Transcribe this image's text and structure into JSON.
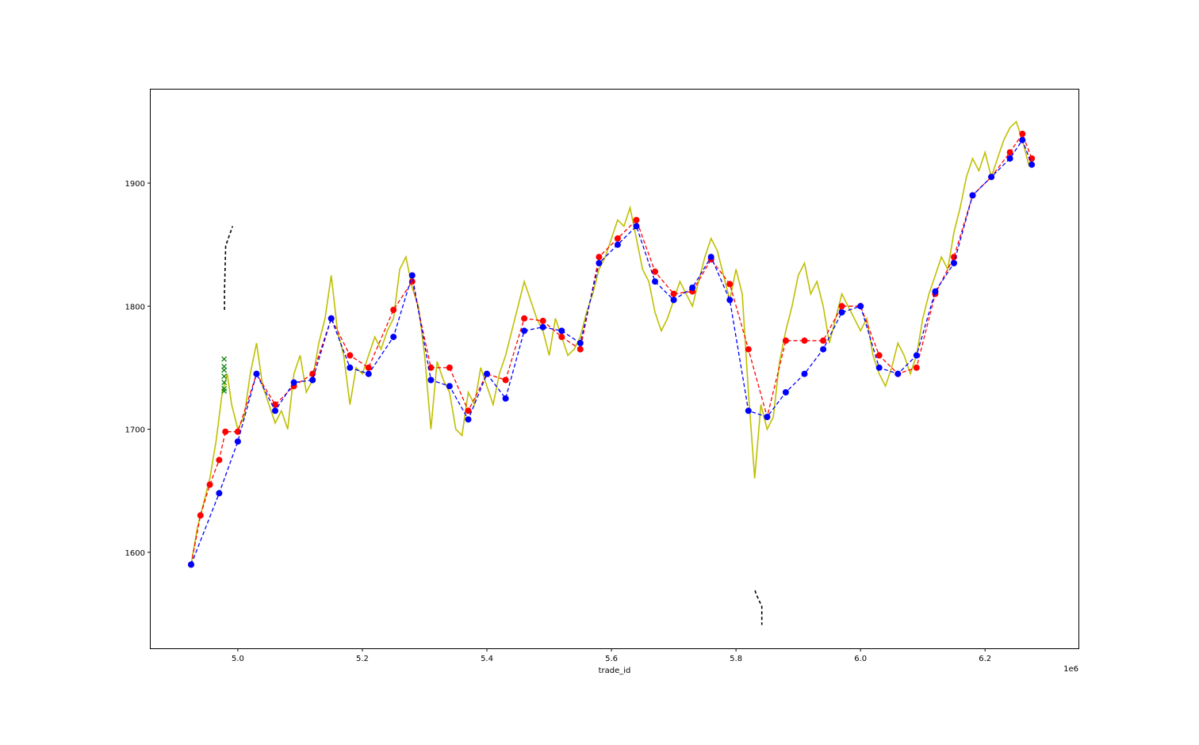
{
  "chart_data": {
    "type": "line",
    "title": "",
    "xlabel": "trade_id",
    "ylabel": "",
    "x_offset_label": "1e6",
    "xlim": [
      4.86,
      6.35
    ],
    "ylim": [
      1522,
      1976
    ],
    "x_ticks": [
      5.0,
      5.2,
      5.4,
      5.6,
      5.8,
      6.0,
      6.2
    ],
    "x_tick_labels": [
      "5.0",
      "5.2",
      "5.4",
      "5.6",
      "5.8",
      "6.0",
      "6.2"
    ],
    "y_ticks": [
      1600,
      1700,
      1800,
      1900
    ],
    "y_tick_labels": [
      "1600",
      "1700",
      "1800",
      "1900"
    ],
    "grid": false,
    "legend": "none",
    "colors": {
      "price": "#bfbf00",
      "upper": "#ff0000",
      "lower": "#0000ff",
      "band": "#000000",
      "markers": "#008000"
    },
    "series": [
      {
        "style": "solid",
        "color": "#bfbf00",
        "x": [
          4.925,
          4.935,
          4.945,
          4.955,
          4.965,
          4.975,
          4.983,
          4.99,
          5.0,
          5.01,
          5.02,
          5.03,
          5.04,
          5.05,
          5.06,
          5.07,
          5.08,
          5.09,
          5.1,
          5.11,
          5.12,
          5.13,
          5.14,
          5.15,
          5.16,
          5.17,
          5.18,
          5.19,
          5.2,
          5.21,
          5.22,
          5.23,
          5.24,
          5.25,
          5.26,
          5.27,
          5.28,
          5.29,
          5.3,
          5.31,
          5.32,
          5.33,
          5.34,
          5.35,
          5.36,
          5.37,
          5.38,
          5.39,
          5.4,
          5.41,
          5.42,
          5.43,
          5.44,
          5.45,
          5.46,
          5.47,
          5.48,
          5.49,
          5.5,
          5.51,
          5.52,
          5.53,
          5.54,
          5.55,
          5.56,
          5.57,
          5.58,
          5.59,
          5.6,
          5.61,
          5.62,
          5.63,
          5.64,
          5.65,
          5.66,
          5.67,
          5.68,
          5.69,
          5.7,
          5.71,
          5.72,
          5.73,
          5.74,
          5.75,
          5.76,
          5.77,
          5.78,
          5.79,
          5.8,
          5.81,
          5.82,
          5.83,
          5.84,
          5.85,
          5.86,
          5.87,
          5.88,
          5.89,
          5.9,
          5.91,
          5.92,
          5.93,
          5.94,
          5.95,
          5.96,
          5.97,
          5.98,
          5.99,
          6.0,
          6.01,
          6.02,
          6.03,
          6.04,
          6.05,
          6.06,
          6.07,
          6.08,
          6.09,
          6.1,
          6.11,
          6.12,
          6.13,
          6.14,
          6.15,
          6.16,
          6.17,
          6.18,
          6.19,
          6.2,
          6.21,
          6.22,
          6.23,
          6.24,
          6.25,
          6.26,
          6.27,
          6.275
        ],
        "y": [
          1590,
          1620,
          1640,
          1660,
          1690,
          1730,
          1745,
          1720,
          1700,
          1710,
          1745,
          1770,
          1735,
          1720,
          1705,
          1715,
          1700,
          1745,
          1760,
          1730,
          1740,
          1770,
          1790,
          1825,
          1780,
          1760,
          1720,
          1750,
          1745,
          1760,
          1775,
          1765,
          1780,
          1790,
          1830,
          1840,
          1815,
          1800,
          1760,
          1700,
          1755,
          1740,
          1730,
          1700,
          1695,
          1730,
          1720,
          1750,
          1735,
          1720,
          1745,
          1760,
          1780,
          1800,
          1820,
          1805,
          1790,
          1780,
          1760,
          1790,
          1775,
          1760,
          1765,
          1775,
          1795,
          1810,
          1830,
          1840,
          1855,
          1870,
          1865,
          1880,
          1855,
          1830,
          1820,
          1795,
          1780,
          1790,
          1805,
          1820,
          1810,
          1800,
          1820,
          1840,
          1855,
          1845,
          1825,
          1805,
          1830,
          1810,
          1730,
          1660,
          1720,
          1700,
          1710,
          1755,
          1780,
          1800,
          1825,
          1835,
          1810,
          1820,
          1800,
          1770,
          1790,
          1810,
          1800,
          1790,
          1780,
          1790,
          1760,
          1745,
          1735,
          1750,
          1770,
          1760,
          1745,
          1760,
          1790,
          1810,
          1825,
          1840,
          1830,
          1860,
          1880,
          1905,
          1920,
          1910,
          1925,
          1905,
          1920,
          1935,
          1945,
          1950,
          1935,
          1915,
          1920
        ]
      },
      {
        "style": "dashed",
        "color": "#ff0000",
        "x": [
          4.925,
          4.94,
          4.955,
          4.97,
          4.98,
          5.0,
          5.03,
          5.06,
          5.09,
          5.12,
          5.15,
          5.18,
          5.21,
          5.25,
          5.28,
          5.31,
          5.34,
          5.37,
          5.4,
          5.43,
          5.46,
          5.49,
          5.52,
          5.55,
          5.58,
          5.61,
          5.64,
          5.67,
          5.7,
          5.73,
          5.76,
          5.79,
          5.82,
          5.85,
          5.88,
          5.91,
          5.94,
          5.97,
          6.0,
          6.03,
          6.06,
          6.09,
          6.12,
          6.15,
          6.18,
          6.21,
          6.24,
          6.26,
          6.275
        ],
        "y": [
          1590,
          1630,
          1655,
          1675,
          1698,
          1698,
          1745,
          1720,
          1735,
          1745,
          1790,
          1760,
          1750,
          1797,
          1820,
          1750,
          1750,
          1715,
          1745,
          1740,
          1790,
          1788,
          1775,
          1765,
          1840,
          1855,
          1870,
          1828,
          1810,
          1812,
          1838,
          1818,
          1765,
          1710,
          1772,
          1772,
          1772,
          1800,
          1800,
          1760,
          1745,
          1750,
          1810,
          1840,
          1890,
          1905,
          1925,
          1940,
          1920
        ]
      },
      {
        "style": "dashed",
        "color": "#0000ff",
        "x": [
          4.925,
          4.97,
          5.0,
          5.03,
          5.06,
          5.09,
          5.12,
          5.15,
          5.18,
          5.21,
          5.25,
          5.28,
          5.31,
          5.34,
          5.37,
          5.4,
          5.43,
          5.46,
          5.49,
          5.52,
          5.55,
          5.58,
          5.61,
          5.64,
          5.67,
          5.7,
          5.73,
          5.76,
          5.79,
          5.82,
          5.85,
          5.88,
          5.91,
          5.94,
          5.97,
          6.0,
          6.03,
          6.06,
          6.09,
          6.12,
          6.15,
          6.18,
          6.21,
          6.24,
          6.26,
          6.275
        ],
        "y": [
          1590,
          1648,
          1690,
          1745,
          1715,
          1738,
          1740,
          1790,
          1750,
          1745,
          1775,
          1825,
          1740,
          1735,
          1708,
          1745,
          1725,
          1780,
          1783,
          1780,
          1770,
          1835,
          1850,
          1865,
          1820,
          1805,
          1815,
          1840,
          1805,
          1715,
          1710,
          1730,
          1745,
          1765,
          1795,
          1800,
          1750,
          1745,
          1760,
          1812,
          1835,
          1890,
          1905,
          1920,
          1935,
          1915
        ]
      }
    ],
    "band_segments": [
      {
        "x": [
          4.9785,
          4.9785,
          4.9805,
          4.9915
        ],
        "y": [
          1797,
          1812,
          1849,
          1865
        ]
      },
      {
        "x": [
          5.8305,
          5.8325,
          5.8415,
          5.8415
        ],
        "y": [
          1569,
          1566,
          1556,
          1541
        ]
      }
    ],
    "cross_markers": {
      "x": [
        4.978,
        4.978,
        4.978,
        4.978,
        4.978,
        4.978,
        4.978
      ],
      "y": [
        1731,
        1733,
        1738,
        1743,
        1748,
        1751,
        1757
      ]
    }
  }
}
